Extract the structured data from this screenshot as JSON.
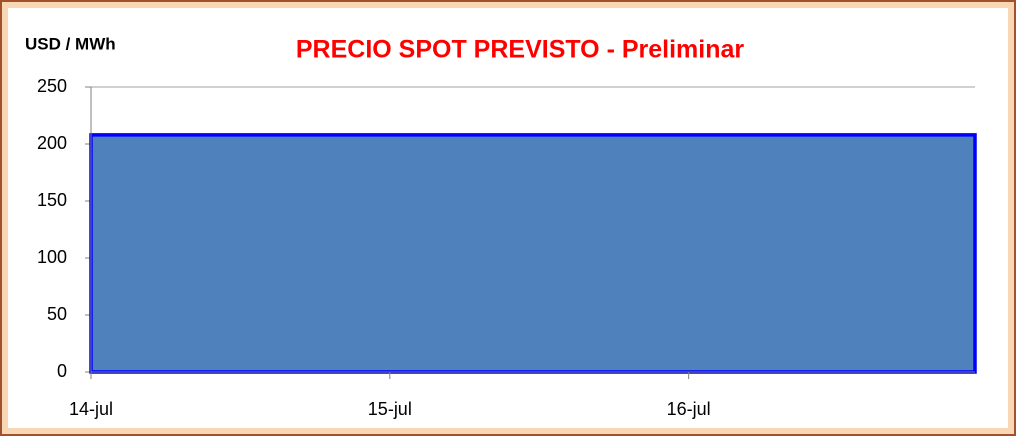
{
  "chart_data": {
    "type": "area",
    "title": "PRECIO SPOT PREVISTO - Preliminar",
    "ylabel": "USD / MWh",
    "categories": [
      "14-jul",
      null,
      null,
      null,
      null,
      null,
      null,
      null,
      null,
      null,
      null,
      null,
      null,
      null,
      null,
      null,
      null,
      null,
      null,
      null,
      null,
      null,
      null,
      null,
      "15-jul",
      null,
      null,
      null,
      null,
      null,
      null,
      null,
      null,
      null,
      null,
      null,
      null,
      null,
      null,
      null,
      null,
      null,
      null,
      null,
      null,
      null,
      null,
      null,
      "16-jul",
      null,
      null,
      null,
      null,
      null,
      null,
      null,
      null,
      null,
      null,
      null,
      null,
      null,
      null,
      null,
      null,
      null,
      null,
      null,
      null,
      null,
      null,
      null
    ],
    "values": [
      208,
      208,
      208,
      208,
      208,
      208,
      208,
      208,
      208,
      208,
      208,
      208,
      208,
      208,
      208,
      208,
      208,
      208,
      208,
      208,
      208,
      208,
      208,
      208,
      208,
      208,
      208,
      208,
      208,
      208,
      208,
      208,
      208,
      208,
      208,
      208,
      208,
      208,
      208,
      208,
      208,
      208,
      208,
      208,
      208,
      208,
      208,
      208,
      208,
      208,
      208,
      208,
      208,
      208,
      208,
      208,
      208,
      208,
      208,
      208,
      208,
      208,
      208,
      208,
      208,
      208,
      208,
      208,
      208,
      208,
      208,
      208
    ],
    "color": "#4f81bd",
    "line_color": "#0000ff",
    "ylim": [
      0,
      250
    ],
    "yticks": [
      0,
      50,
      100,
      150,
      200,
      250
    ],
    "grid": false
  }
}
